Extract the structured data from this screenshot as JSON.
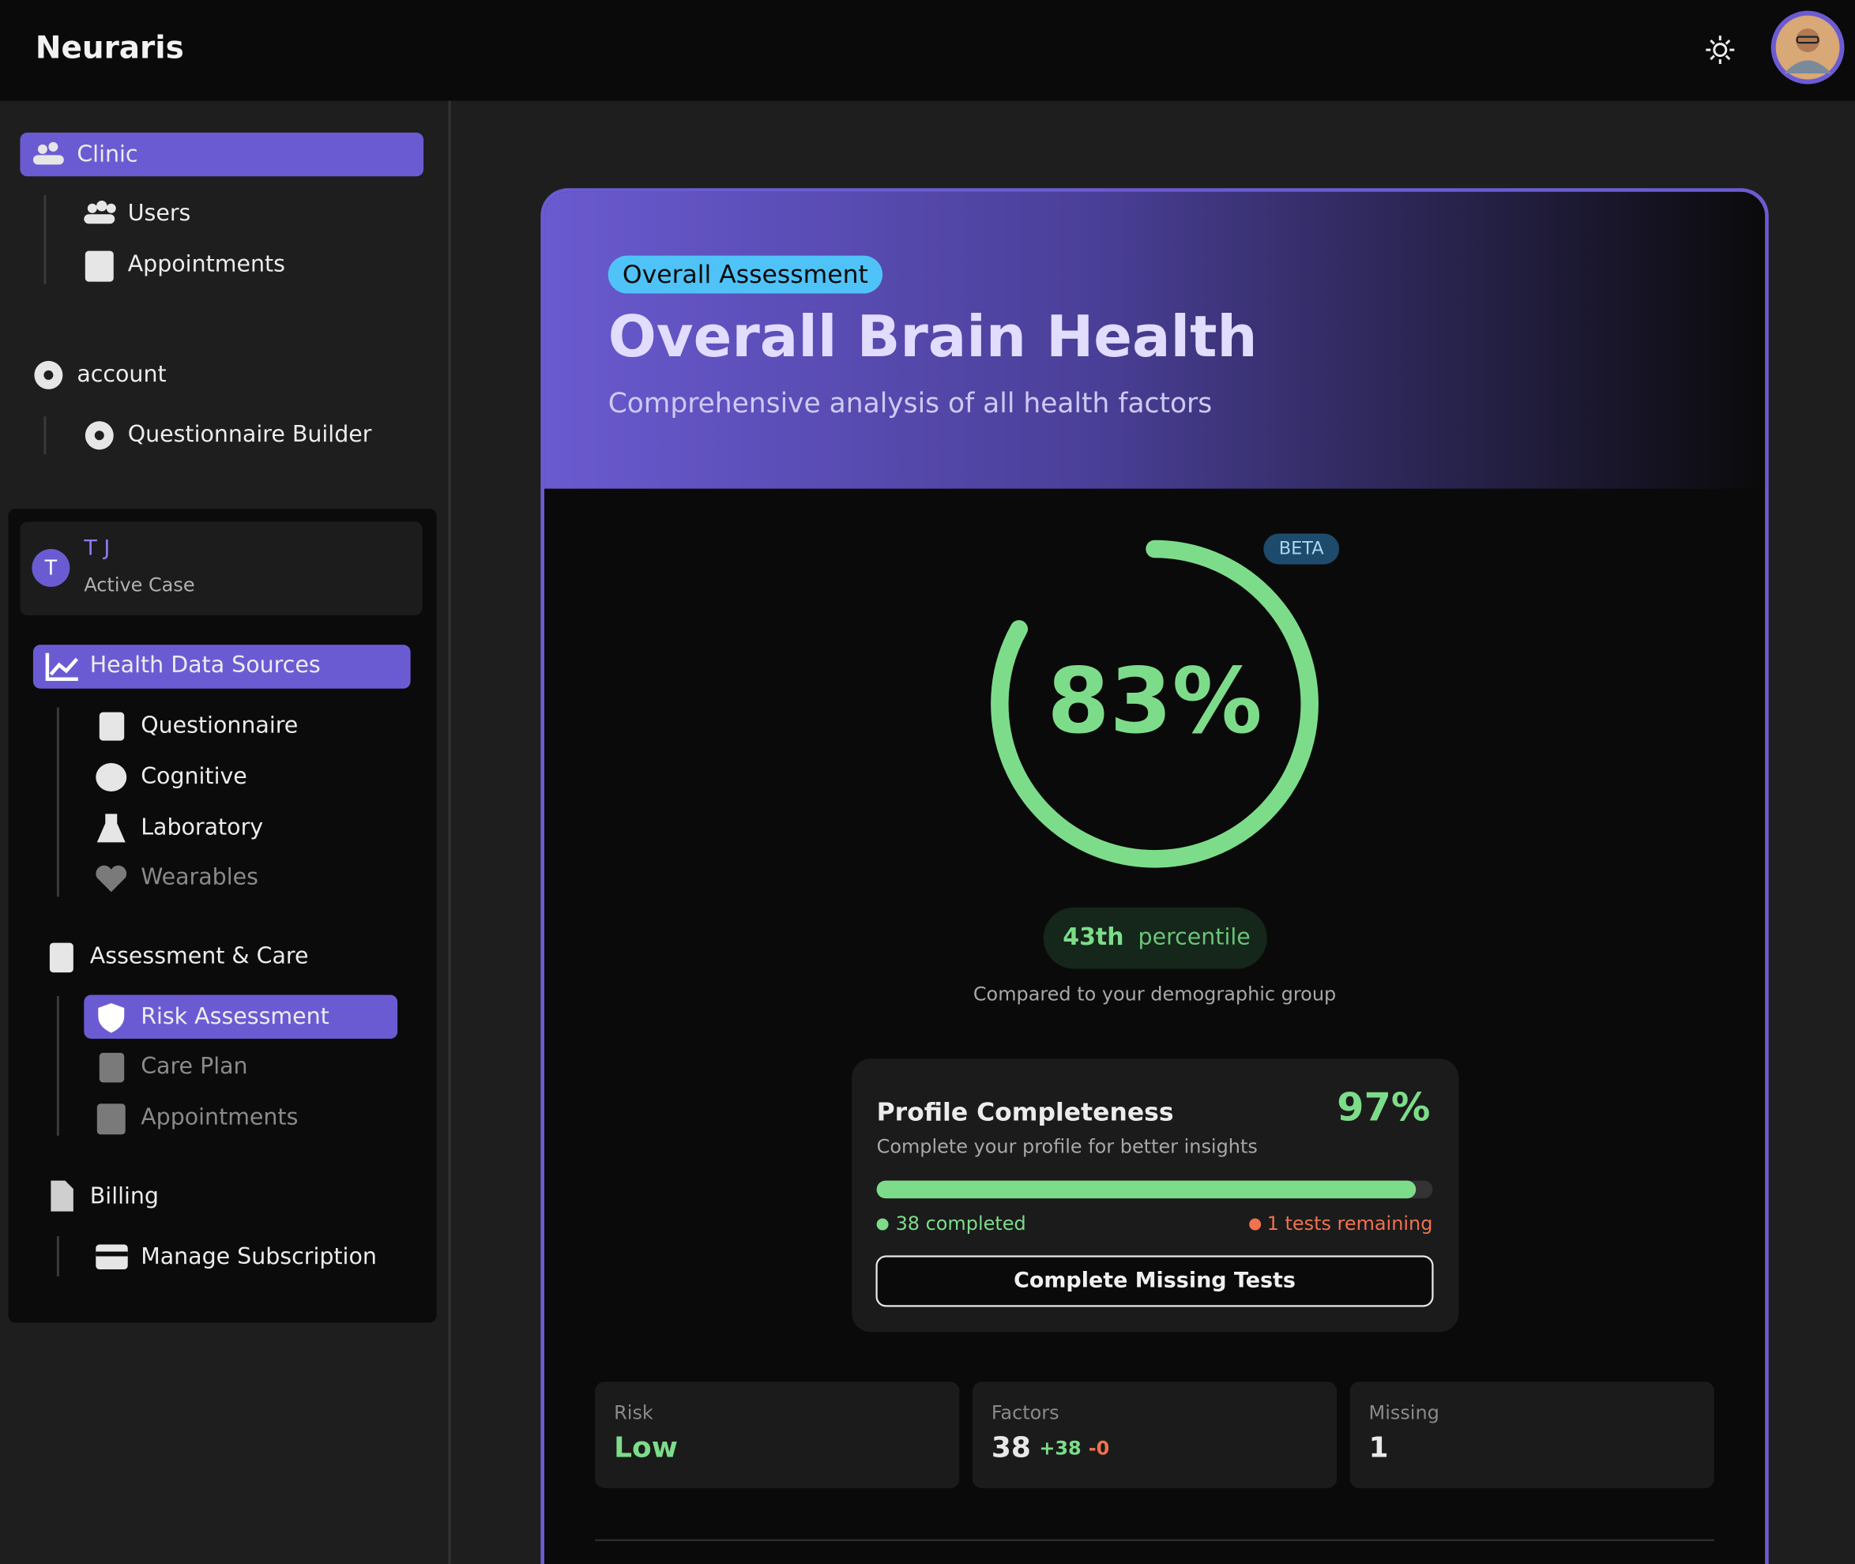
{
  "header": {
    "brand": "Neuraris"
  },
  "sidebar": {
    "clinic": {
      "label": "Clinic",
      "items": [
        "Users",
        "Appointments"
      ]
    },
    "account": {
      "label": "account",
      "items": [
        "Questionnaire Builder"
      ]
    },
    "case": {
      "initial": "T",
      "name": "T J",
      "status": "Active Case"
    },
    "sections": [
      {
        "label": "Health Data Sources",
        "items": [
          "Questionnaire",
          "Cognitive",
          "Laboratory",
          "Wearables"
        ]
      },
      {
        "label": "Assessment & Care",
        "items": [
          "Risk Assessment",
          "Care Plan",
          "Appointments"
        ]
      },
      {
        "label": "Billing",
        "items": [
          "Manage Subscription"
        ]
      }
    ]
  },
  "assessment": {
    "badge": "Overall Assessment",
    "title": "Overall Brain Health",
    "subtitle": "Comprehensive analysis of all health factors",
    "beta": "BETA",
    "score": {
      "value": 83,
      "label": "83%"
    },
    "percentile": {
      "rank": "43th",
      "label": "percentile"
    },
    "comparison": "Compared to your demographic group",
    "profile": {
      "title": "Profile Completeness",
      "value": 97,
      "value_label": "97%",
      "subtitle": "Complete your profile for better insights",
      "completed": "38 completed",
      "remaining": "1 tests remaining",
      "button": "Complete Missing Tests"
    },
    "stats": [
      {
        "label": "Risk",
        "value": "Low"
      },
      {
        "label": "Factors",
        "value": "38",
        "up": "+38",
        "down": "-0"
      },
      {
        "label": "Missing",
        "value": "1"
      }
    ]
  }
}
